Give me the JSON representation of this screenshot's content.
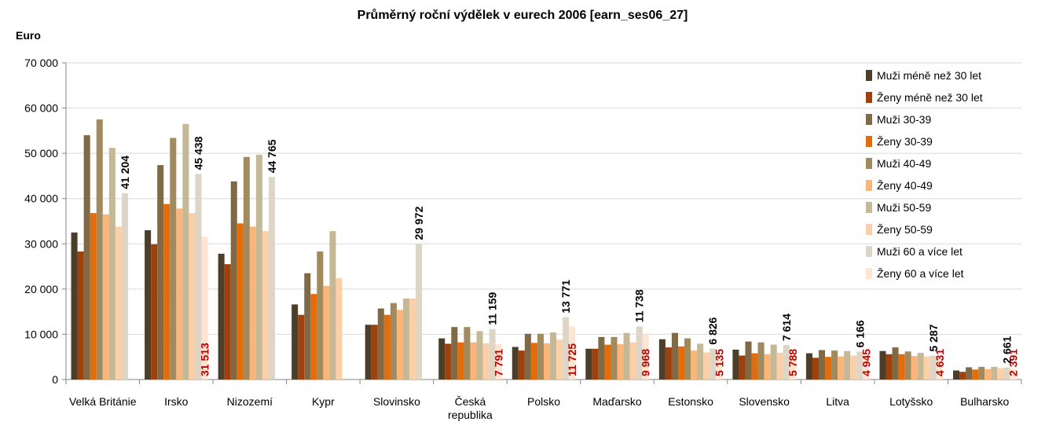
{
  "chart_data": {
    "type": "bar",
    "title": "Průměrný roční výdělek v eurech 2006 [earn_ses06_27]",
    "y_label": "Euro",
    "categories": [
      "Velká Británie",
      "Irsko",
      "Nizozemí",
      "Kypr",
      "Slovinsko",
      "Česká republika",
      "Polsko",
      "Maďarsko",
      "Estonsko",
      "Slovensko",
      "Litva",
      "Lotyšsko",
      "Bulharsko"
    ],
    "series": [
      {
        "name": "Muži méně než 30 let",
        "color": "#4d3e2a",
        "values": [
          32500,
          33000,
          27800,
          16600,
          12100,
          9100,
          7200,
          6800,
          8900,
          6600,
          5800,
          6300,
          2000
        ]
      },
      {
        "name": "Ženy méně než 30 let",
        "color": "#a0410d",
        "values": [
          28300,
          29900,
          25500,
          14300,
          12100,
          7900,
          6400,
          6800,
          7100,
          5300,
          4800,
          5600,
          1700
        ]
      },
      {
        "name": "Muži 30-39",
        "color": "#7f6a45",
        "values": [
          54000,
          47400,
          43800,
          23500,
          15700,
          11600,
          10100,
          9400,
          10300,
          8400,
          6500,
          7100,
          2700
        ]
      },
      {
        "name": "Ženy 30-39",
        "color": "#e46c0a",
        "values": [
          36800,
          38800,
          34500,
          18900,
          14300,
          8200,
          8100,
          7700,
          7300,
          5800,
          5000,
          5600,
          2200
        ]
      },
      {
        "name": "Muži 40-49",
        "color": "#a08a5e",
        "values": [
          57500,
          53400,
          49200,
          28300,
          16900,
          11600,
          10100,
          9400,
          9100,
          8200,
          6400,
          6200,
          2800
        ]
      },
      {
        "name": "Ženy 40-49",
        "color": "#f9b57a",
        "values": [
          36500,
          37800,
          33800,
          20700,
          15400,
          8200,
          8000,
          7800,
          6400,
          5600,
          5100,
          5200,
          2300
        ]
      },
      {
        "name": "Muži 50-59",
        "color": "#c4b896",
        "values": [
          51200,
          56500,
          49700,
          32800,
          17900,
          10700,
          10400,
          10300,
          7900,
          7700,
          6300,
          5900,
          2800
        ]
      },
      {
        "name": "Ženy 50-59",
        "color": "#fbcfa8",
        "values": [
          33800,
          36800,
          32800,
          22400,
          17900,
          8000,
          8800,
          8200,
          6000,
          5900,
          5300,
          5100,
          2500
        ]
      },
      {
        "name": "Muži 60 a více let",
        "color": "#ddd6c6",
        "values": [
          41204,
          45438,
          44765,
          null,
          29972,
          11159,
          13771,
          11738,
          6826,
          7614,
          6166,
          5287,
          2661
        ],
        "value_labels": [
          "41 204",
          "45 438",
          "44 765",
          null,
          "29 972",
          "11 159",
          "13 771",
          "11 738",
          "6 826",
          "7 614",
          "6 166",
          "5 287",
          "2 661"
        ],
        "label_color": "#000000"
      },
      {
        "name": "Ženy 60 a více let",
        "color": "#fde5d2",
        "values": [
          null,
          31513,
          null,
          null,
          null,
          7791,
          11725,
          9968,
          5135,
          5788,
          4945,
          4631,
          2391
        ],
        "value_labels": [
          null,
          "31 513",
          null,
          null,
          null,
          "7 791",
          "11 725",
          "9 968",
          "5 135",
          "5 788",
          "4 945",
          "4 631",
          "2 391"
        ],
        "label_color": "#c00000"
      }
    ],
    "ylim": [
      0,
      70000
    ],
    "yticks": [
      0,
      {
        "value": 10000,
        "label": "10 000"
      },
      {
        "value": 20000,
        "label": "20 000"
      },
      {
        "value": 30000,
        "label": "30 000"
      },
      {
        "value": 40000,
        "label": "40 000"
      },
      {
        "value": 50000,
        "label": "50 000"
      },
      {
        "value": 60000,
        "label": "60 000"
      },
      {
        "value": 70000,
        "label": "70 000"
      }
    ],
    "grid": true,
    "legend": "right"
  }
}
